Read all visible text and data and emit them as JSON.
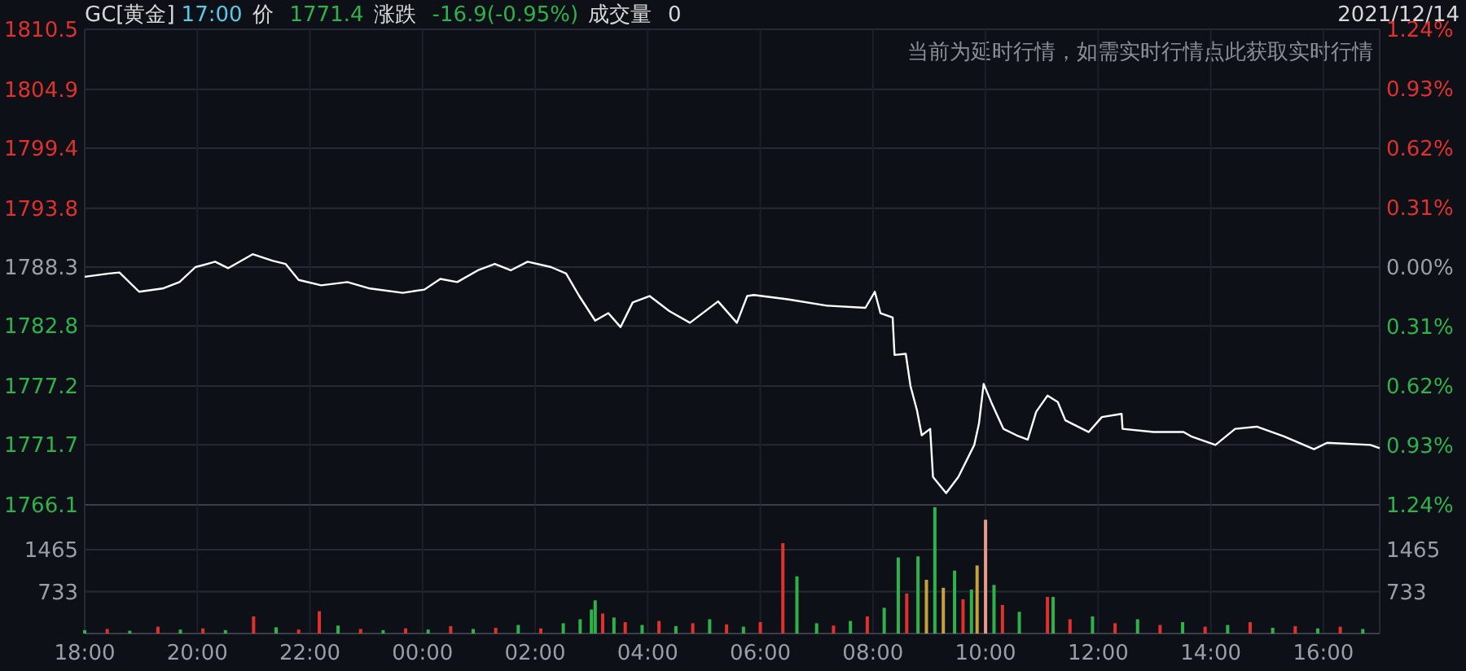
{
  "chart_data": [
    {
      "type": "line",
      "title": "GC[黄金]",
      "annotations": [
        "17:00",
        "价",
        "1771.4",
        "涨跌",
        "-16.9(-0.95%)",
        "成交量",
        "0",
        "2021/12/14",
        "当前为延时行情，如需实时行情点此获取实时行情"
      ],
      "x": [
        "2021-12-13T18:00",
        "2021-12-13T18:26",
        "2021-12-13T18:37",
        "2021-12-13T18:58",
        "2021-12-13T19:23",
        "2021-12-13T19:41",
        "2021-12-13T19:58",
        "2021-12-13T20:19",
        "2021-12-13T20:33",
        "2021-12-13T20:59",
        "2021-12-13T21:20",
        "2021-12-13T21:34",
        "2021-12-13T21:48",
        "2021-12-13T22:12",
        "2021-12-13T22:40",
        "2021-12-13T23:04",
        "2021-12-13T23:39",
        "2021-12-14T00:02",
        "2021-12-14T00:19",
        "2021-12-14T00:37",
        "2021-12-14T00:59",
        "2021-12-14T01:17",
        "2021-12-14T01:34",
        "2021-12-14T01:52",
        "2021-12-14T02:17",
        "2021-12-14T02:33",
        "2021-12-14T02:47",
        "2021-12-14T03:04",
        "2021-12-14T03:18",
        "2021-12-14T03:31",
        "2021-12-14T03:44",
        "2021-12-14T04:02",
        "2021-12-14T04:23",
        "2021-12-14T04:45",
        "2021-12-14T05:15",
        "2021-12-14T05:35",
        "2021-12-14T05:46",
        "2021-12-14T05:53",
        "2021-12-14T06:29",
        "2021-12-14T07:11",
        "2021-12-14T07:52",
        "2021-12-14T08:02",
        "2021-12-14T08:08",
        "2021-12-14T08:21",
        "2021-12-14T08:23",
        "2021-12-14T08:35",
        "2021-12-14T08:40",
        "2021-12-14T08:47",
        "2021-12-14T08:52",
        "2021-12-14T09:01",
        "2021-12-14T09:04",
        "2021-12-14T09:18",
        "2021-12-14T09:31",
        "2021-12-14T09:48",
        "2021-12-14T09:53",
        "2021-12-14T09:58",
        "2021-12-14T10:07",
        "2021-12-14T10:19",
        "2021-12-14T10:33",
        "2021-12-14T10:45",
        "2021-12-14T10:54",
        "2021-12-14T11:06",
        "2021-12-14T11:17",
        "2021-12-14T11:25",
        "2021-12-14T11:50",
        "2021-12-14T12:04",
        "2021-12-14T12:25",
        "2021-12-14T12:26",
        "2021-12-14T12:59",
        "2021-12-14T13:31",
        "2021-12-14T13:39",
        "2021-12-14T14:05",
        "2021-12-14T14:26",
        "2021-12-14T14:49",
        "2021-12-14T15:18",
        "2021-12-14T15:50",
        "2021-12-14T16:04",
        "2021-12-14T16:50",
        "2021-12-14T17:00"
      ],
      "series": [
        {
          "color": "#ffffff",
          "values": [
            1787.4,
            1787.7,
            1787.8,
            1786.0,
            1786.3,
            1786.9,
            1788.3,
            1788.8,
            1788.2,
            1789.5,
            1788.9,
            1788.6,
            1787.1,
            1786.6,
            1786.9,
            1786.3,
            1785.9,
            1786.2,
            1787.2,
            1786.9,
            1788.0,
            1788.6,
            1788.0,
            1788.8,
            1788.3,
            1787.7,
            1785.6,
            1783.3,
            1784.0,
            1782.7,
            1785.0,
            1785.6,
            1784.2,
            1783.1,
            1785.1,
            1783.1,
            1785.6,
            1785.7,
            1785.3,
            1784.7,
            1784.5,
            1786.0,
            1784.0,
            1783.6,
            1780.1,
            1780.2,
            1777.2,
            1774.9,
            1772.6,
            1773.2,
            1768.7,
            1767.2,
            1768.7,
            1771.7,
            1773.7,
            1777.4,
            1775.5,
            1773.2,
            1772.6,
            1772.2,
            1774.8,
            1776.3,
            1775.7,
            1774.0,
            1772.9,
            1774.3,
            1774.6,
            1773.2,
            1772.9,
            1772.9,
            1772.5,
            1771.7,
            1773.2,
            1773.4,
            1772.5,
            1771.3,
            1771.9,
            1771.7,
            1771.4
          ]
        }
      ],
      "xlim": [
        "2021-12-13T18:00",
        "2021-12-14T17:00"
      ],
      "xticks": [
        {
          "value": "2021-12-13T18:00",
          "label": null
        },
        {
          "value": "2021-12-13T20:00",
          "label": null
        },
        {
          "value": "2021-12-13T22:00",
          "label": null
        },
        {
          "value": "2021-12-14T00:00",
          "label": null
        },
        {
          "value": "2021-12-14T02:00",
          "label": null
        },
        {
          "value": "2021-12-14T04:00",
          "label": null
        },
        {
          "value": "2021-12-14T06:00",
          "label": null
        },
        {
          "value": "2021-12-14T08:00",
          "label": null
        },
        {
          "value": "2021-12-14T10:00",
          "label": null
        },
        {
          "value": "2021-12-14T12:00",
          "label": null
        },
        {
          "value": "2021-12-14T14:00",
          "label": null
        },
        {
          "value": "2021-12-14T16:00",
          "label": null
        }
      ],
      "ylim": [
        1766.1,
        1810.5
      ],
      "yticks": [
        1766.1,
        1771.7,
        1777.2,
        1782.8,
        1788.3,
        1793.8,
        1799.4,
        1804.9,
        1810.5
      ],
      "y2lim": [
        -1.24,
        1.24
      ],
      "y2ticks": [
        {
          "value": -1.24,
          "label": "1.24%"
        },
        {
          "value": -0.93,
          "label": "0.93%"
        },
        {
          "value": -0.62,
          "label": "0.62%"
        },
        {
          "value": -0.31,
          "label": "0.31%"
        },
        {
          "value": 0,
          "label": "0.00%"
        },
        {
          "value": 0.31,
          "label": "0.31%"
        },
        {
          "value": 0.62,
          "label": "0.62%"
        },
        {
          "value": 0.93,
          "label": "0.93%"
        },
        {
          "value": 1.24,
          "label": "1.24%"
        }
      ],
      "grid": true,
      "tick_labels": "y"
    },
    {
      "type": "bar",
      "x": [
        "2021-12-13T18:00",
        "2021-12-13T18:24",
        "2021-12-13T18:48",
        "2021-12-13T19:18",
        "2021-12-13T19:42",
        "2021-12-13T20:06",
        "2021-12-13T20:30",
        "2021-12-13T21:00",
        "2021-12-13T21:24",
        "2021-12-13T21:48",
        "2021-12-13T22:10",
        "2021-12-13T22:30",
        "2021-12-13T22:54",
        "2021-12-13T23:18",
        "2021-12-13T23:42",
        "2021-12-14T00:06",
        "2021-12-14T00:30",
        "2021-12-14T00:54",
        "2021-12-14T01:18",
        "2021-12-14T01:42",
        "2021-12-14T02:06",
        "2021-12-14T02:30",
        "2021-12-14T02:48",
        "2021-12-14T03:00",
        "2021-12-14T03:04",
        "2021-12-14T03:12",
        "2021-12-14T03:24",
        "2021-12-14T03:36",
        "2021-12-14T03:54",
        "2021-12-14T04:12",
        "2021-12-14T04:30",
        "2021-12-14T04:48",
        "2021-12-14T05:06",
        "2021-12-14T05:24",
        "2021-12-14T05:42",
        "2021-12-14T06:00",
        "2021-12-14T06:24",
        "2021-12-14T06:39",
        "2021-12-14T07:00",
        "2021-12-14T07:18",
        "2021-12-14T07:36",
        "2021-12-14T07:54",
        "2021-12-14T08:12",
        "2021-12-14T08:27",
        "2021-12-14T08:36",
        "2021-12-14T08:48",
        "2021-12-14T08:57",
        "2021-12-14T09:06",
        "2021-12-14T09:15",
        "2021-12-14T09:27",
        "2021-12-14T09:36",
        "2021-12-14T09:45",
        "2021-12-14T09:51",
        "2021-12-14T10:00",
        "2021-12-14T10:09",
        "2021-12-14T10:18",
        "2021-12-14T10:36",
        "2021-12-14T11:06",
        "2021-12-14T11:12",
        "2021-12-14T11:30",
        "2021-12-14T11:54",
        "2021-12-14T12:18",
        "2021-12-14T12:42",
        "2021-12-14T13:06",
        "2021-12-14T13:30",
        "2021-12-14T13:54",
        "2021-12-14T14:18",
        "2021-12-14T14:42",
        "2021-12-14T15:06",
        "2021-12-14T15:30",
        "2021-12-14T15:54",
        "2021-12-14T16:18",
        "2021-12-14T16:42"
      ],
      "values": [
        60,
        80,
        50,
        120,
        70,
        90,
        60,
        300,
        110,
        70,
        390,
        140,
        80,
        60,
        90,
        70,
        130,
        80,
        100,
        150,
        90,
        180,
        250,
        420,
        580,
        350,
        280,
        200,
        150,
        220,
        130,
        180,
        250,
        160,
        120,
        200,
        1580,
        1000,
        180,
        140,
        220,
        300,
        450,
        1330,
        700,
        1350,
        940,
        2210,
        800,
        1100,
        600,
        770,
        1190,
        1990,
        850,
        500,
        380,
        640,
        640,
        250,
        300,
        180,
        250,
        150,
        200,
        120,
        150,
        200,
        100,
        130,
        90,
        120,
        80
      ],
      "colors": [
        "#2fb24a",
        "#e0322d",
        "#2fb24a",
        "#e0322d",
        "#2fb24a",
        "#e0322d",
        "#2fb24a",
        "#e0322d",
        "#2fb24a",
        "#e0322d",
        "#e0322d",
        "#2fb24a",
        "#e0322d",
        "#2fb24a",
        "#e0322d",
        "#2fb24a",
        "#e0322d",
        "#2fb24a",
        "#e0322d",
        "#2fb24a",
        "#e0322d",
        "#2fb24a",
        "#2fb24a",
        "#2fb24a",
        "#2fb24a",
        "#e0322d",
        "#2fb24a",
        "#e0322d",
        "#2fb24a",
        "#e0322d",
        "#2fb24a",
        "#e0322d",
        "#2fb24a",
        "#e0322d",
        "#2fb24a",
        "#e0322d",
        "#e0322d",
        "#2fb24a",
        "#2fb24a",
        "#e0322d",
        "#2fb24a",
        "#e0322d",
        "#2fb24a",
        "#2fb24a",
        "#e0322d",
        "#2fb24a",
        "#c8a040",
        "#2fb24a",
        "#c8a040",
        "#2fb24a",
        "#e0322d",
        "#2fb24a",
        "#c8a040",
        "#e89a8a",
        "#2fb24a",
        "#e0322d",
        "#2fb24a",
        "#e0322d",
        "#2fb24a",
        "#e0322d",
        "#2fb24a",
        "#e0322d",
        "#2fb24a",
        "#e0322d",
        "#2fb24a",
        "#e0322d",
        "#2fb24a",
        "#e0322d",
        "#2fb24a",
        "#e0322d",
        "#2fb24a",
        "#e0322d",
        "#2fb24a"
      ],
      "xlim": [
        "2021-12-13T18:00",
        "2021-12-14T17:00"
      ],
      "xticks": [
        {
          "value": "2021-12-13T18:00",
          "label": "18:00"
        },
        {
          "value": "2021-12-13T20:00",
          "label": "20:00"
        },
        {
          "value": "2021-12-13T22:00",
          "label": "22:00"
        },
        {
          "value": "2021-12-14T00:00",
          "label": "00:00"
        },
        {
          "value": "2021-12-14T02:00",
          "label": "02:00"
        },
        {
          "value": "2021-12-14T04:00",
          "label": "04:00"
        },
        {
          "value": "2021-12-14T06:00",
          "label": "06:00"
        },
        {
          "value": "2021-12-14T08:00",
          "label": "08:00"
        },
        {
          "value": "2021-12-14T10:00",
          "label": "10:00"
        },
        {
          "value": "2021-12-14T12:00",
          "label": "12:00"
        },
        {
          "value": "2021-12-14T14:00",
          "label": "14:00"
        },
        {
          "value": "2021-12-14T16:00",
          "label": "16:00"
        }
      ],
      "ylim": [
        0,
        2250
      ],
      "yticks": [
        733,
        1465
      ],
      "y2lim": [
        0,
        2250
      ],
      "y2ticks": [
        733,
        1465
      ],
      "grid": true
    }
  ]
}
